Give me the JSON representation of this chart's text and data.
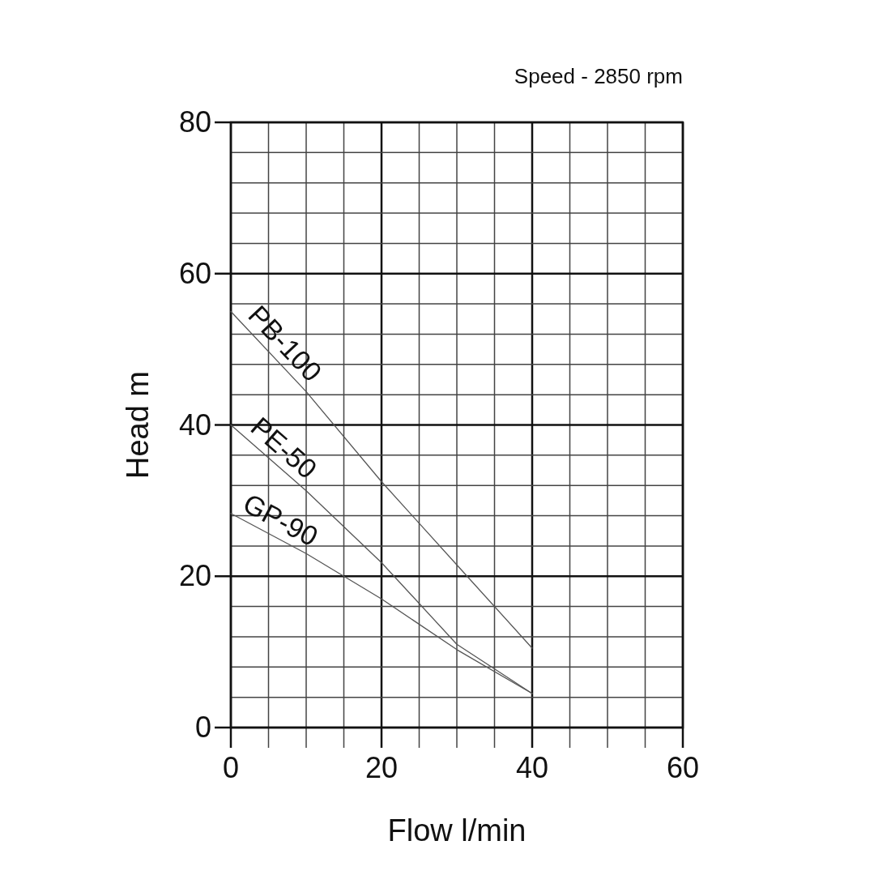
{
  "chart_data": {
    "type": "line",
    "title": "Speed - 2850 rpm",
    "xlabel": "Flow l/min",
    "ylabel": "Head m",
    "xlim": [
      0,
      60
    ],
    "ylim": [
      0,
      80
    ],
    "xticks": [
      0,
      {
        "value": 5,
        "label": null
      },
      {
        "value": 10,
        "label": null
      },
      {
        "value": 15,
        "label": null
      },
      20,
      {
        "value": 25,
        "label": null
      },
      {
        "value": 30,
        "label": null
      },
      {
        "value": 35,
        "label": null
      },
      40,
      {
        "value": 45,
        "label": null
      },
      {
        "value": 50,
        "label": null
      },
      {
        "value": 55,
        "label": null
      },
      60
    ],
    "yticks": [
      0,
      {
        "value": 4,
        "label": null
      },
      {
        "value": 8,
        "label": null
      },
      {
        "value": 12,
        "label": null
      },
      {
        "value": 16,
        "label": null
      },
      20,
      {
        "value": 24,
        "label": null
      },
      {
        "value": 28,
        "label": null
      },
      {
        "value": 32,
        "label": null
      },
      {
        "value": 36,
        "label": null
      },
      40,
      {
        "value": 44,
        "label": null
      },
      {
        "value": 48,
        "label": null
      },
      {
        "value": 52,
        "label": null
      },
      {
        "value": 56,
        "label": null
      },
      60,
      {
        "value": 64,
        "label": null
      },
      {
        "value": 68,
        "label": null
      },
      {
        "value": 72,
        "label": null
      },
      {
        "value": 76,
        "label": null
      },
      80
    ],
    "grid": true,
    "marker": "none",
    "line_style": "solid",
    "x": [
      0,
      10,
      20,
      30,
      40
    ],
    "series": [
      {
        "name": "PB-100",
        "color": "#555555",
        "values": [
          55,
          44.4,
          32.5,
          21.5,
          10.5
        ]
      },
      {
        "name": "PE-50",
        "color": "#555555",
        "values": [
          40,
          31.3,
          21.8,
          11,
          4.5
        ]
      },
      {
        "name": "GP-90",
        "color": "#555555",
        "values": [
          28.3,
          23,
          17,
          10.3,
          4.5
        ]
      }
    ]
  }
}
